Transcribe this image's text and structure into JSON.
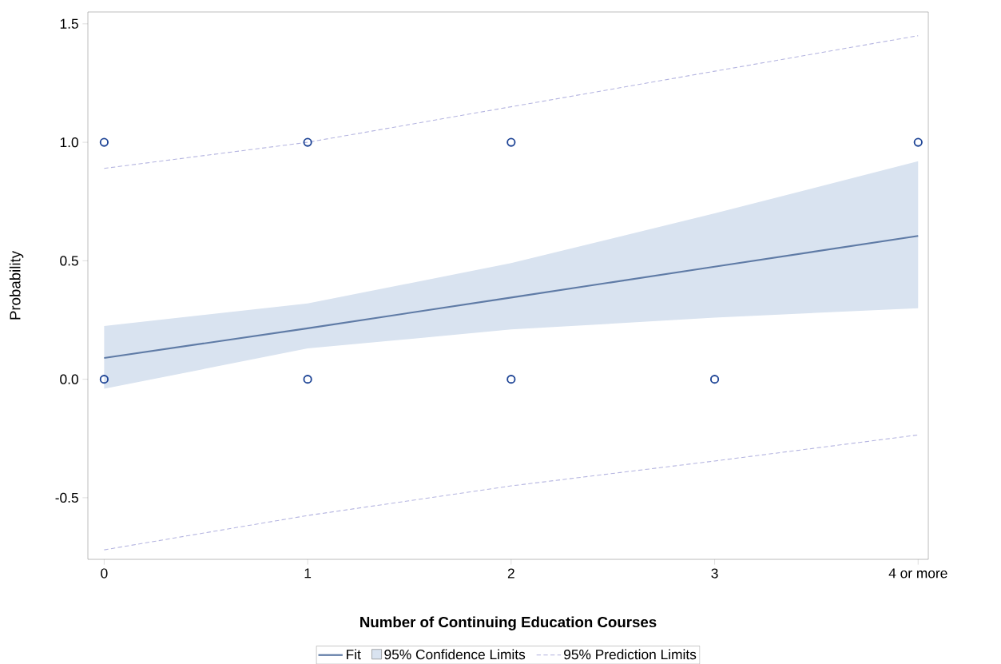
{
  "chart_data": {
    "type": "line",
    "xlabel": "Number of Continuing Education Courses",
    "ylabel": "Probability",
    "annotations": [
      "95% Confidence Limits"
    ],
    "xlim": [
      -0.08,
      4.05
    ],
    "ylim": [
      -0.76,
      1.55
    ],
    "xticks": [
      0,
      1,
      2,
      3,
      {
        "value": 4,
        "label": "4 or more"
      }
    ],
    "yticks": [
      {
        "value": -0.5,
        "label": "-0.5"
      },
      {
        "value": 0,
        "label": "0.0"
      },
      {
        "value": 0.5,
        "label": "0.5"
      },
      {
        "value": 1,
        "label": "1.0"
      },
      {
        "value": 1.5,
        "label": "1.5"
      }
    ],
    "legend": "bottom",
    "series": [
      {
        "type": "line",
        "name": "Fit",
        "color": "#5f7ba6",
        "x": [
          0,
          1,
          2,
          3,
          4
        ],
        "values": [
          0.09,
          0.215,
          0.345,
          0.475,
          0.605
        ],
        "lower": [
          -0.04,
          0.13,
          0.21,
          0.26,
          0.3
        ],
        "upper": [
          0.225,
          0.32,
          0.49,
          0.7,
          0.92
        ]
      },
      {
        "type": "line",
        "name": "95% Prediction Limits",
        "color": "#b4b4e0",
        "line_style": "dashed",
        "x": [
          0,
          1,
          2,
          3,
          4
        ],
        "values": [
          0.89,
          1.0,
          1.15,
          1.3,
          1.45
        ]
      },
      {
        "type": "line",
        "color": "#b4b4e0",
        "line_style": "dashed",
        "x": [
          0,
          1,
          2,
          3,
          4
        ],
        "values": [
          -0.72,
          -0.575,
          -0.45,
          -0.345,
          -0.235
        ]
      },
      {
        "type": "scatter",
        "color": "#1f4596",
        "marker": "circle",
        "x": [
          0,
          1,
          2,
          4,
          0,
          1,
          2,
          3
        ],
        "values": [
          1,
          1,
          1,
          1,
          0,
          0,
          0,
          0
        ]
      }
    ]
  }
}
